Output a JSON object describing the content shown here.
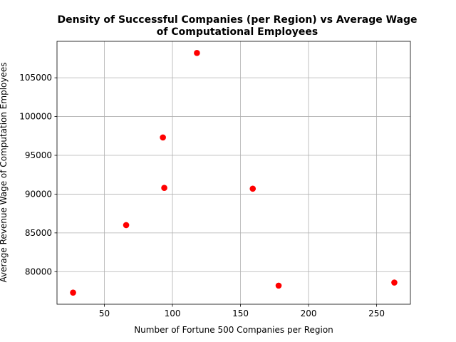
{
  "chart_data": {
    "type": "scatter",
    "title_lines": [
      "Density of Successful Companies (per Region) vs Average Wage",
      "of Computational Employees"
    ],
    "xlabel": "Number of Fortune 500 Companies per Region",
    "ylabel": "Average Revenue Wage of Computation Employees",
    "xlim": [
      15.2,
      274.8
    ],
    "ylim": [
      75800,
      109700
    ],
    "x_ticks": [
      50,
      100,
      150,
      200,
      250
    ],
    "y_ticks": [
      80000,
      85000,
      90000,
      95000,
      100000,
      105000
    ],
    "grid": true,
    "marker_color": "#ff0000",
    "points": [
      {
        "x": 27,
        "y": 77300
      },
      {
        "x": 66,
        "y": 86000
      },
      {
        "x": 93,
        "y": 97300
      },
      {
        "x": 94,
        "y": 90800
      },
      {
        "x": 118,
        "y": 108200
      },
      {
        "x": 159,
        "y": 90700
      },
      {
        "x": 178,
        "y": 78200
      },
      {
        "x": 263,
        "y": 78600
      }
    ]
  }
}
